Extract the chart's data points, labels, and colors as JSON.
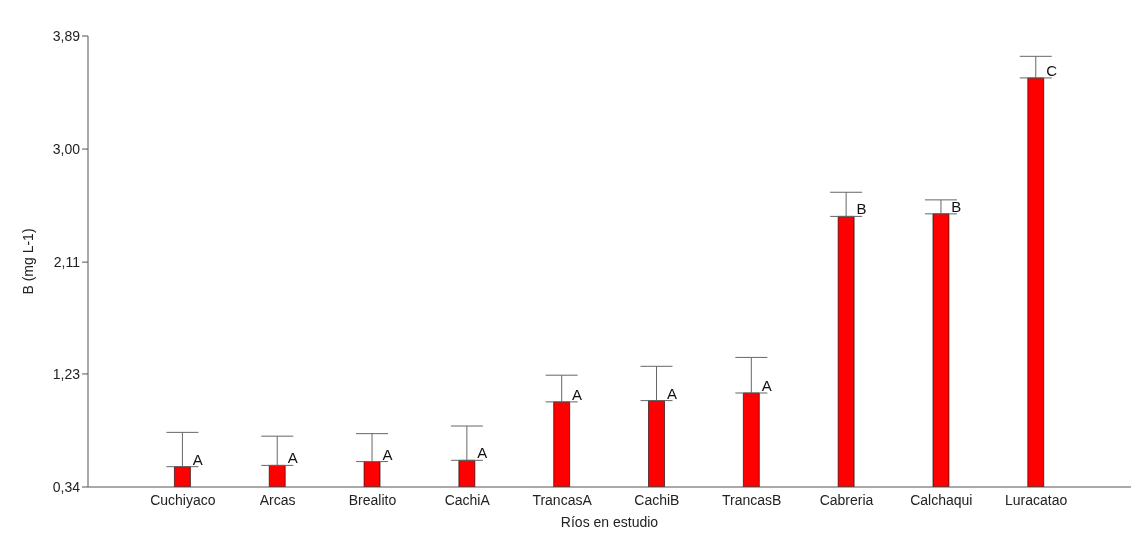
{
  "chart_data": {
    "type": "bar",
    "xlabel": "Ríos en estudio",
    "ylabel": "B (mg L-1)",
    "categories": [
      "Cuchiyaco",
      "Arcas",
      "Brealito",
      "CachiA",
      "TrancasA",
      "CachiB",
      "TrancasB",
      "Cabreria",
      "Calchaqui",
      "Luracatao"
    ],
    "values": [
      0.5,
      0.51,
      0.54,
      0.55,
      1.01,
      1.02,
      1.08,
      2.47,
      2.49,
      3.56
    ],
    "errors": [
      [
        0.5,
        0.77
      ],
      [
        0.51,
        0.74
      ],
      [
        0.54,
        0.76
      ],
      [
        0.55,
        0.82
      ],
      [
        1.01,
        1.22
      ],
      [
        1.02,
        1.29
      ],
      [
        1.08,
        1.36
      ],
      [
        2.47,
        2.66
      ],
      [
        2.49,
        2.6
      ],
      [
        3.56,
        3.73
      ]
    ],
    "color": "#ff0000",
    "ylim": [
      0.34,
      3.89
    ],
    "yticks": [
      {
        "value": 0.34,
        "label": "0,34"
      },
      {
        "value": 1.23,
        "label": "1,23"
      },
      {
        "value": 2.11,
        "label": "2,11"
      },
      {
        "value": 3.0,
        "label": "3,00"
      },
      {
        "value": 3.89,
        "label": "3,89"
      }
    ],
    "grid": false,
    "legend": false,
    "annotations": [
      {
        "text": "A",
        "x": "Cuchiyaco",
        "y": 0.5
      },
      {
        "text": "A",
        "x": "Arcas",
        "y": 0.51
      },
      {
        "text": "A",
        "x": "Brealito",
        "y": 0.54
      },
      {
        "text": "A",
        "x": "CachiA",
        "y": 0.55
      },
      {
        "text": "A",
        "x": "TrancasA",
        "y": 1.01
      },
      {
        "text": "A",
        "x": "CachiB",
        "y": 1.02
      },
      {
        "text": "A",
        "x": "TrancasB",
        "y": 1.08
      },
      {
        "text": "B",
        "x": "Cabreria",
        "y": 2.47
      },
      {
        "text": "B",
        "x": "Calchaqui",
        "y": 2.49
      },
      {
        "text": "C",
        "x": "Luracatao",
        "y": 3.56
      }
    ]
  }
}
